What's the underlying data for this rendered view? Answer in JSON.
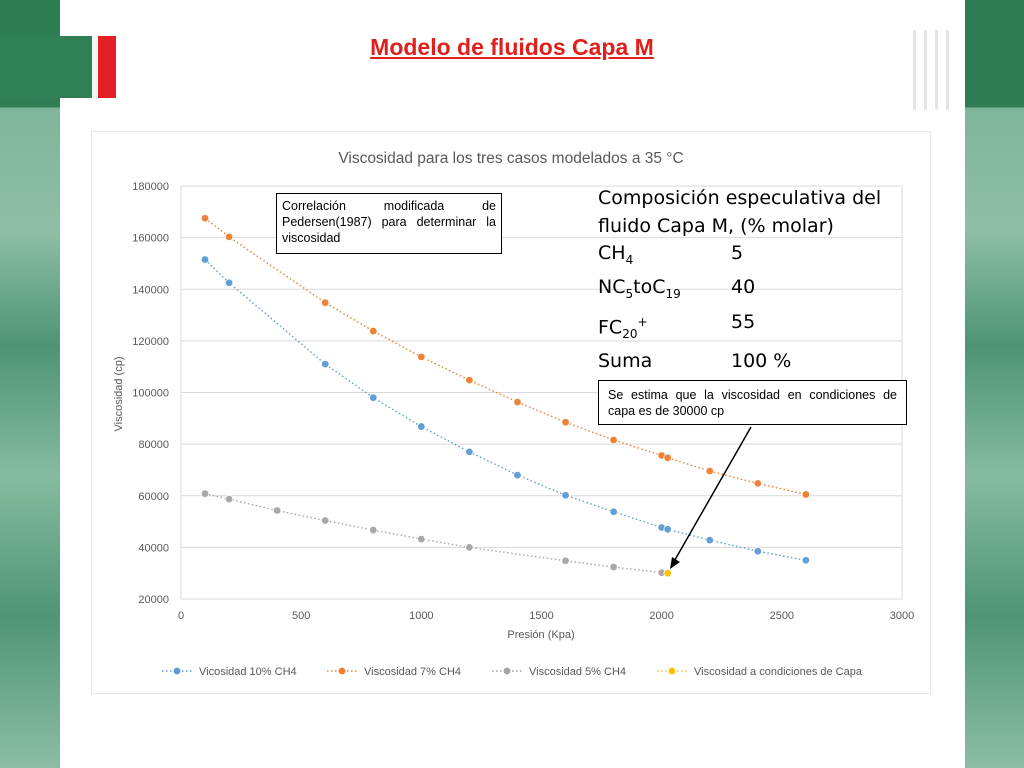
{
  "slide": {
    "title": "Modelo de fluidos Capa M"
  },
  "annotations": {
    "correlation_note": "Correlación modificada de Pedersen(1987) para determinar la viscosidad",
    "estimate_note": "Se estima que la viscosidad en condiciones de capa es de 30000 cp",
    "composition": {
      "heading_line1": "Composición especulativa del",
      "heading_line2": "fluido Capa M, (% molar)",
      "rows": [
        {
          "label": "CH4",
          "value": "5"
        },
        {
          "label": "NC5toC19",
          "value": "40"
        },
        {
          "label": "FC20+",
          "value": "55"
        },
        {
          "label": "Suma",
          "value": "100 %"
        }
      ]
    }
  },
  "chart_data": {
    "type": "scatter",
    "title": "Viscosidad para los tres casos modelados a 35 °C",
    "xlabel": "Presión (Kpa)",
    "ylabel": "Viscosidad (cp)",
    "xlim": [
      0,
      3000
    ],
    "ylim": [
      20000,
      180000
    ],
    "xticks": [
      "0",
      "500",
      "1000",
      "1500",
      "2000",
      "2500",
      "3000"
    ],
    "yticks": [
      "20000",
      "40000",
      "60000",
      "80000",
      "100000",
      "120000",
      "140000",
      "160000",
      "180000"
    ],
    "grid": "horizontal",
    "legend_position": "bottom",
    "series": [
      {
        "name": "Vicosidad 10% CH4",
        "color": "#5b9bd5",
        "x": [
          100,
          200,
          600,
          800,
          1000,
          1200,
          1400,
          1600,
          1800,
          2000,
          2025,
          2200,
          2400,
          2600
        ],
        "y": [
          151500,
          142500,
          111000,
          98000,
          86800,
          77000,
          68000,
          60200,
          53800,
          47700,
          47000,
          42800,
          38500,
          35000
        ]
      },
      {
        "name": "Viscosidad 7% CH4",
        "color": "#ed7d31",
        "x": [
          100,
          200,
          600,
          800,
          1000,
          1200,
          1400,
          1600,
          1800,
          2000,
          2025,
          2200,
          2400,
          2600
        ],
        "y": [
          167500,
          160300,
          134800,
          123800,
          113800,
          104800,
          96300,
          88500,
          81600,
          75600,
          74700,
          69600,
          64800,
          60500
        ]
      },
      {
        "name": "Viscosidad 5% CH4",
        "color": "#a5a5a5",
        "x": [
          100,
          200,
          400,
          600,
          800,
          1000,
          1200,
          1600,
          1800,
          2000
        ],
        "y": [
          60800,
          58700,
          54300,
          50400,
          46700,
          43200,
          40000,
          34800,
          32400,
          30200
        ]
      },
      {
        "name": "Viscosidad a condiciones de Capa",
        "color": "#ffc000",
        "x": [
          2025
        ],
        "y": [
          30000
        ]
      }
    ]
  }
}
